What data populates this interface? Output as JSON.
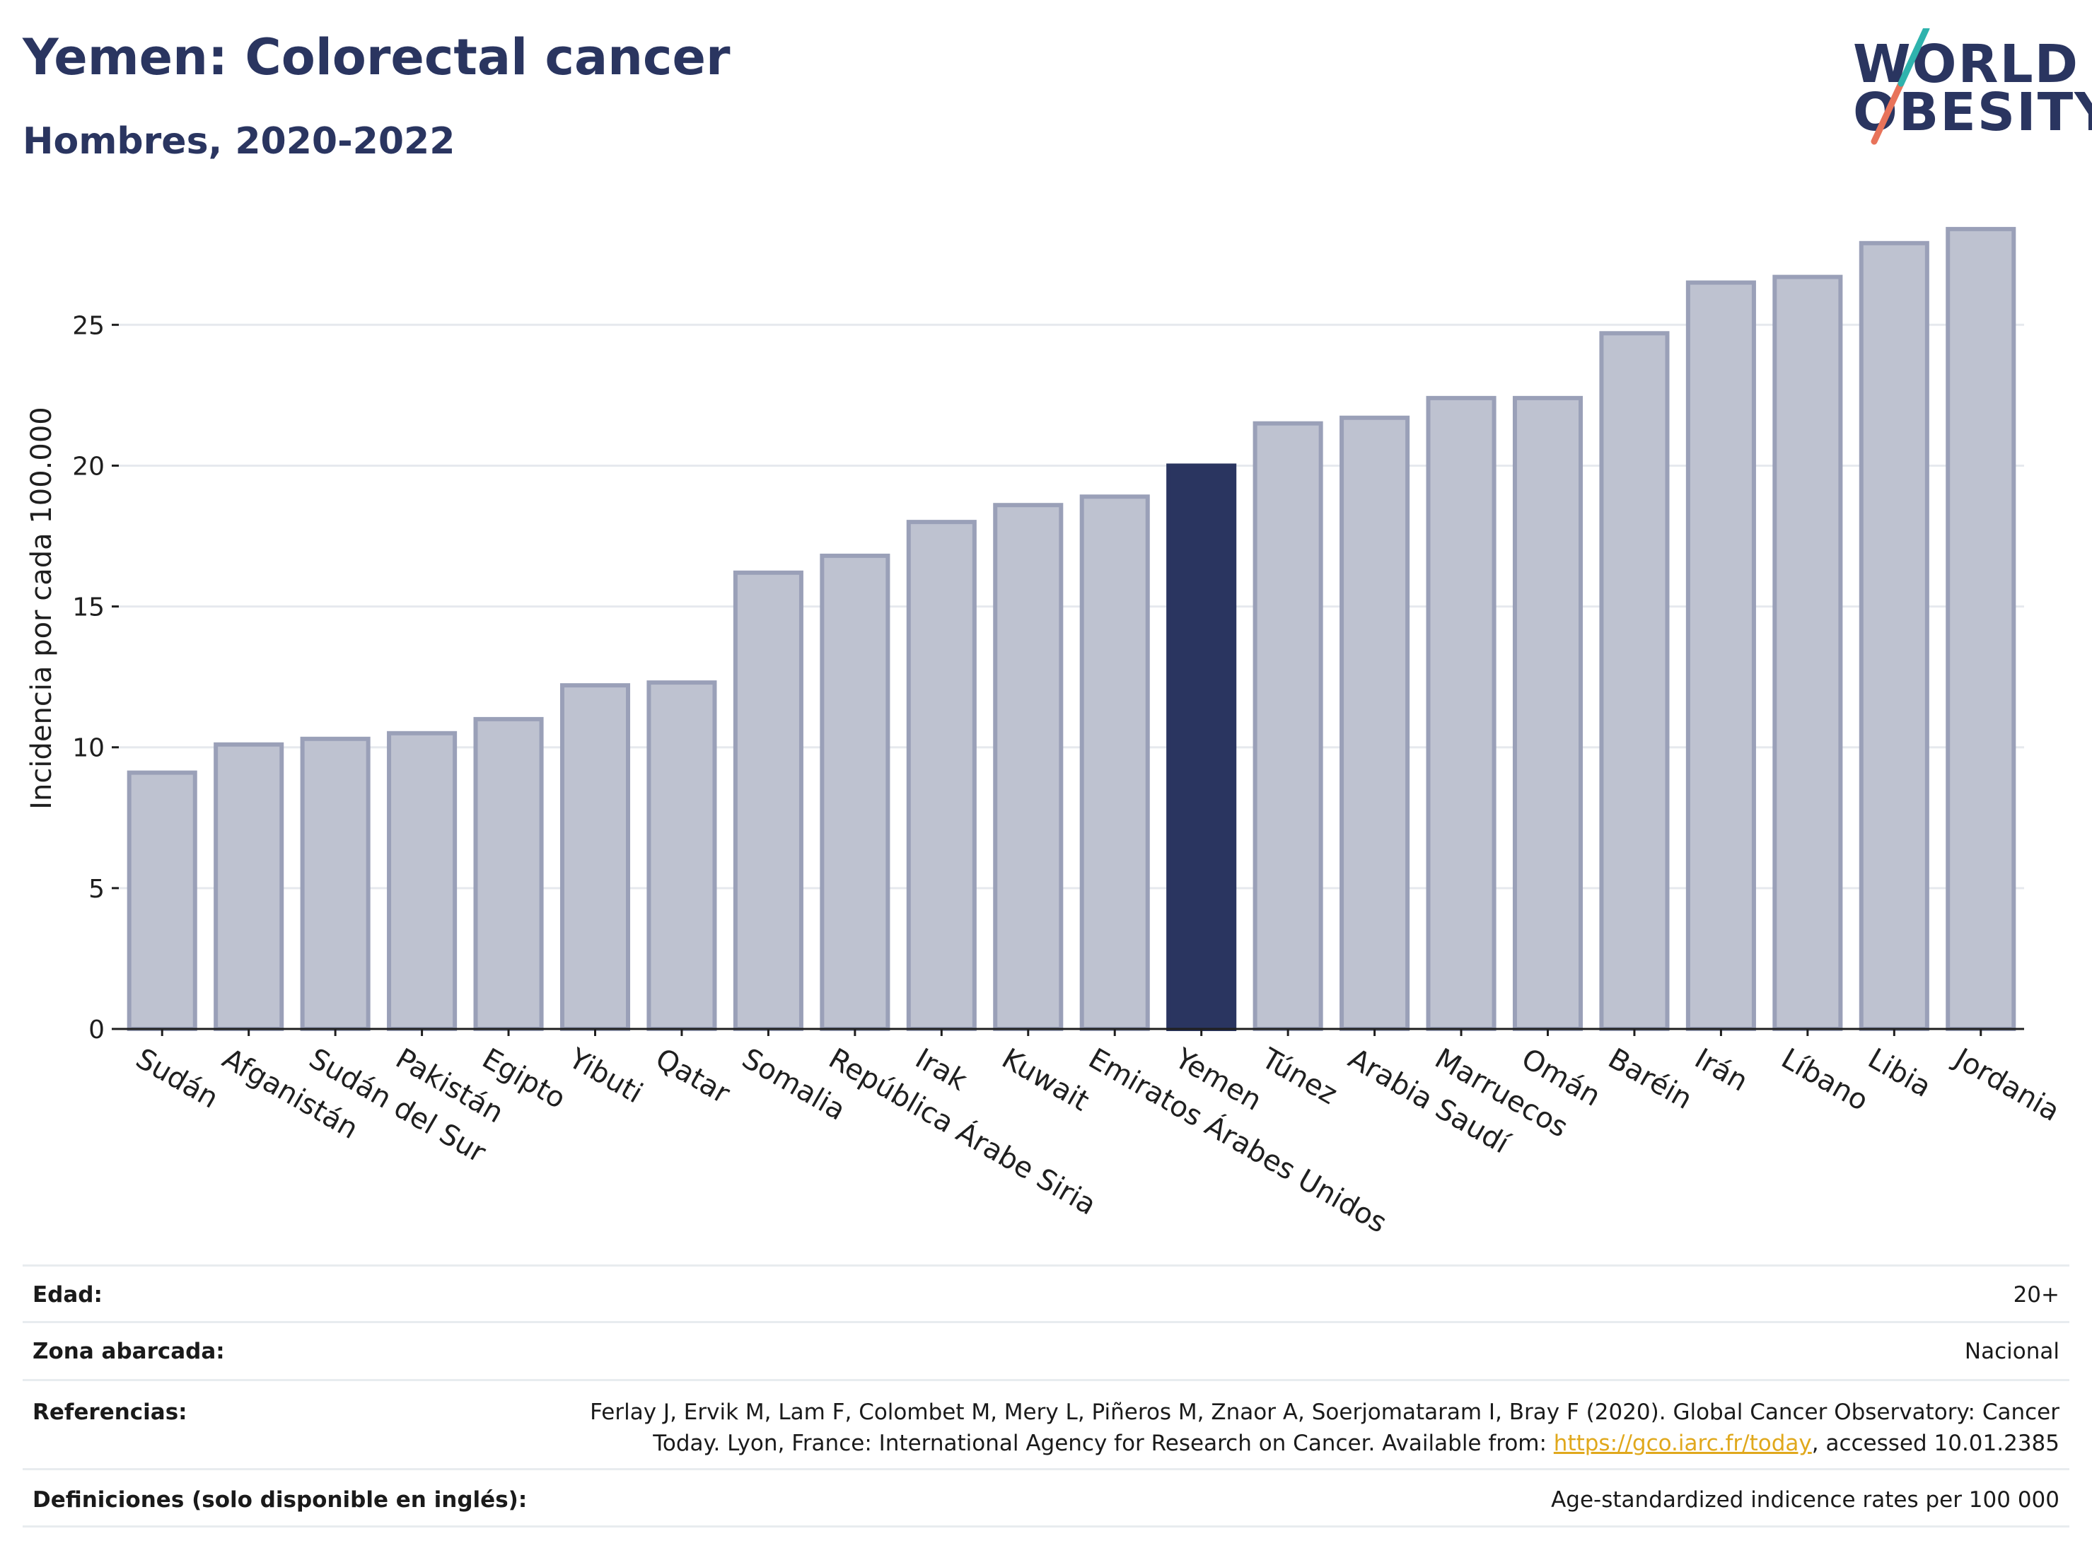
{
  "title": "Yemen: Colorectal cancer",
  "subtitle": "Hombres, 2020-2022",
  "logo": {
    "line1": "WORLD",
    "line2": "OBESITY"
  },
  "colors": {
    "bar": "#bec2d0",
    "bar_border": "#9aa0b8",
    "highlight": "#2a3560",
    "grid": "#e6e9ee"
  },
  "chart_data": {
    "type": "bar",
    "ylabel": "Incidencia por cada 100.000",
    "xlabel": "",
    "ylim": [
      0,
      29
    ],
    "yticks": [
      0,
      5,
      10,
      15,
      20,
      25
    ],
    "grid": true,
    "highlight": "Yemen",
    "categories": [
      "Sudán",
      "Afganistán",
      "Sudán del Sur",
      "Pakistán",
      "Egipto",
      "Yibuti",
      "Qatar",
      "Somalia",
      "República Árabe Siria",
      "Irak",
      "Kuwait",
      "Emiratos Árabes Unidos",
      "Yemen",
      "Túnez",
      "Arabia Saudí",
      "Marruecos",
      "Omán",
      "Baréin",
      "Irán",
      "Líbano",
      "Libia",
      "Jordania"
    ],
    "values": [
      9.1,
      10.1,
      10.3,
      10.5,
      11.0,
      12.2,
      12.3,
      16.2,
      16.8,
      18.0,
      18.6,
      18.9,
      20.0,
      21.5,
      21.7,
      22.4,
      22.4,
      24.7,
      26.5,
      26.7,
      27.9,
      28.4
    ]
  },
  "info": {
    "age_label": "Edad:",
    "age_value": "20+",
    "area_label": "Zona abarcada:",
    "area_value": "Nacional",
    "ref_label": "Referencias:",
    "ref_line1": "Ferlay J, Ervik M, Lam F, Colombet M, Mery L, Piñeros M, Znaor A, Soerjomataram I, Bray F (2020). Global Cancer Observatory: Cancer",
    "ref_line2_pre": "Today. Lyon, France: International Agency for Research on Cancer. Available from: ",
    "ref_link": "https://gco.iarc.fr/today",
    "ref_line2_post": ", accessed 10.01.2385",
    "def_label": "Definiciones (solo disponible en inglés):",
    "def_value": "Age-standardized indicence rates per 100 000"
  }
}
